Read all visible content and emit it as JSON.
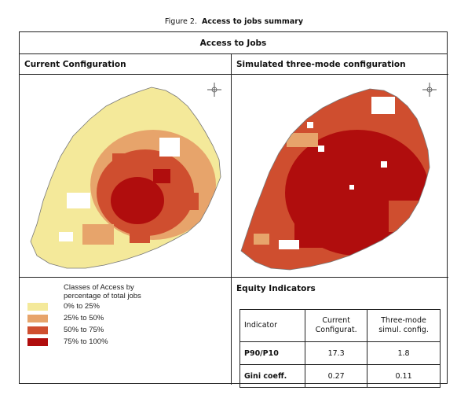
{
  "figure": {
    "caption_prefix": "Figure 2.",
    "caption_title": "Access to jobs summary",
    "main_title": "Access to Jobs"
  },
  "panels": {
    "left_title": "Current Configuration",
    "right_title": "Simulated three-mode configuration"
  },
  "legend": {
    "title_line1": "Classes of Access by",
    "title_line2": "percentage of total jobs",
    "items": [
      {
        "label": "0% to 25%",
        "color": "#f4e99a"
      },
      {
        "label": "25% to 50%",
        "color": "#e7a46b"
      },
      {
        "label": "50% to 75%",
        "color": "#cf4e2f"
      },
      {
        "label": "75% to 100%",
        "color": "#b00d0d"
      }
    ]
  },
  "equity": {
    "title": "Equity Indicators",
    "header": {
      "indicator": "Indicator",
      "current_line1": "Current",
      "current_line2": "Configurat.",
      "sim_line1": "Three-mode",
      "sim_line2": "simul. config."
    },
    "rows": [
      {
        "name": "P90/P10",
        "current": "17.3",
        "simulated": "1.8"
      },
      {
        "name": "Gini coeff.",
        "current": "0.27",
        "simulated": "0.11"
      }
    ]
  },
  "colors": {
    "class1": "#f4e99a",
    "class2": "#e7a46b",
    "class3": "#cf4e2f",
    "class4": "#b00d0d"
  },
  "icons": [
    "north-arrow-icon"
  ]
}
